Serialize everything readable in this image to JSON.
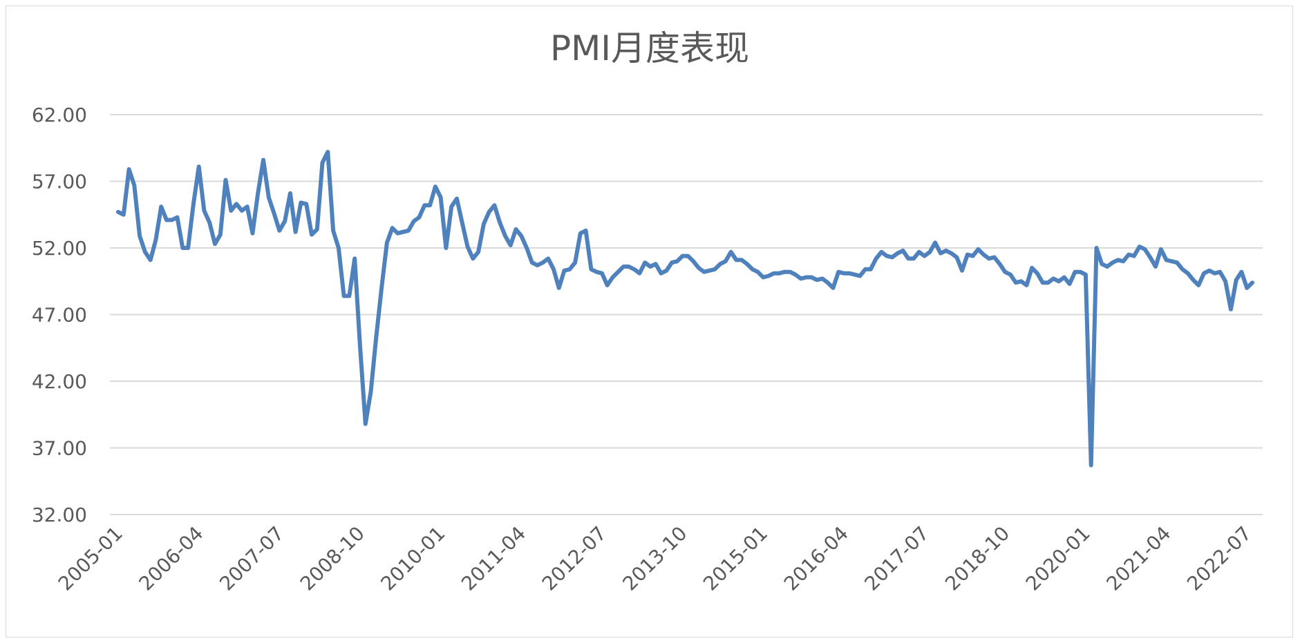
{
  "chart_data": {
    "type": "line",
    "title": "PMI月度表现",
    "xlabel": "",
    "ylabel": "",
    "ylim": [
      32,
      62
    ],
    "yticks": [
      "62.00",
      "57.00",
      "52.00",
      "47.00",
      "42.00",
      "37.00",
      "32.00"
    ],
    "xticks": [
      "2005-01",
      "2006-04",
      "2007-07",
      "2008-10",
      "2010-01",
      "2011-04",
      "2012-07",
      "2013-10",
      "2015-01",
      "2016-04",
      "2017-07",
      "2018-10",
      "2020-01",
      "2021-04",
      "2022-07"
    ],
    "grid": true,
    "legend": "none",
    "color": "#4f81bd",
    "start": "2005-01",
    "series": [
      {
        "name": "",
        "values": [
          54.7,
          54.5,
          57.9,
          56.7,
          52.9,
          51.7,
          51.1,
          52.6,
          55.1,
          54.1,
          54.1,
          54.3,
          52.0,
          52.0,
          55.3,
          58.1,
          54.8,
          53.9,
          52.3,
          53.0,
          57.1,
          54.8,
          55.3,
          54.8,
          55.1,
          53.1,
          56.1,
          58.6,
          55.8,
          54.6,
          53.3,
          54.0,
          56.1,
          53.2,
          55.4,
          55.3,
          53.0,
          53.4,
          58.4,
          59.2,
          53.3,
          52.0,
          48.4,
          48.4,
          51.2,
          44.6,
          38.8,
          41.2,
          45.3,
          49.0,
          52.4,
          53.5,
          53.1,
          53.2,
          53.3,
          54.0,
          54.3,
          55.2,
          55.2,
          56.6,
          55.8,
          52.0,
          55.1,
          55.7,
          53.9,
          52.1,
          51.2,
          51.7,
          53.8,
          54.7,
          55.2,
          53.9,
          52.9,
          52.2,
          53.4,
          52.9,
          52.0,
          50.9,
          50.7,
          50.9,
          51.2,
          50.4,
          49.0,
          50.3,
          50.4,
          50.9,
          53.1,
          53.3,
          50.4,
          50.2,
          50.1,
          49.2,
          49.8,
          50.2,
          50.6,
          50.6,
          50.4,
          50.1,
          50.9,
          50.6,
          50.8,
          50.1,
          50.3,
          50.9,
          51.0,
          51.4,
          51.4,
          51.0,
          50.5,
          50.2,
          50.3,
          50.4,
          50.8,
          51.0,
          51.7,
          51.1,
          51.1,
          50.8,
          50.4,
          50.2,
          49.8,
          49.9,
          50.1,
          50.1,
          50.2,
          50.2,
          50.0,
          49.7,
          49.8,
          49.8,
          49.6,
          49.7,
          49.4,
          49.0,
          50.2,
          50.1,
          50.1,
          50.0,
          49.9,
          50.4,
          50.4,
          51.2,
          51.7,
          51.4,
          51.3,
          51.6,
          51.8,
          51.2,
          51.2,
          51.7,
          51.4,
          51.7,
          52.4,
          51.6,
          51.8,
          51.6,
          51.3,
          50.3,
          51.5,
          51.4,
          51.9,
          51.5,
          51.2,
          51.3,
          50.8,
          50.2,
          50.0,
          49.4,
          49.5,
          49.2,
          50.5,
          50.1,
          49.4,
          49.4,
          49.7,
          49.5,
          49.8,
          49.3,
          50.2,
          50.2,
          50.0,
          35.7,
          52.0,
          50.8,
          50.6,
          50.9,
          51.1,
          51.0,
          51.5,
          51.4,
          52.1,
          51.9,
          51.3,
          50.6,
          51.9,
          51.1,
          51.0,
          50.9,
          50.4,
          50.1,
          49.6,
          49.2,
          50.1,
          50.3,
          50.1,
          50.2,
          49.5,
          47.4,
          49.6,
          50.2,
          49.0,
          49.4
        ]
      }
    ]
  }
}
